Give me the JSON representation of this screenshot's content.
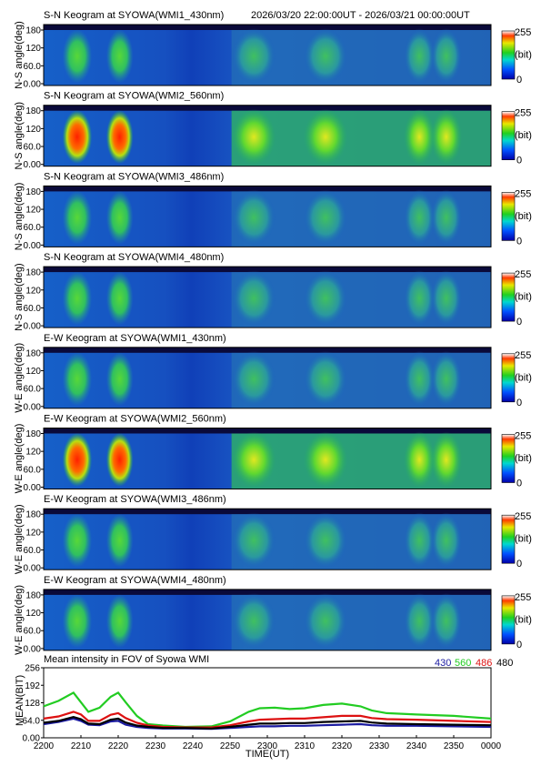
{
  "header": {
    "time_range": "2026/03/20 22:00:00UT - 2026/03/21 00:00:00UT"
  },
  "colorbar": {
    "max_label": "255",
    "unit_label": "(bit)",
    "min_label": "0"
  },
  "keograms": [
    {
      "title": "S-N Keogram at SYOWA(WMI1_430nm)",
      "ylabel": "N-S angle(deg)",
      "ticks": [
        "180",
        "120",
        "60.0",
        "0.00"
      ],
      "intensity": 0.55
    },
    {
      "title": "S-N Keogram at SYOWA(WMI2_560nm)",
      "ylabel": "N-S angle(deg)",
      "ticks": [
        "180",
        "120",
        "60.0",
        "0.00"
      ],
      "intensity": 1.0
    },
    {
      "title": "S-N Keogram at SYOWA(WMI3_486nm)",
      "ylabel": "N-S angle(deg)",
      "ticks": [
        "180",
        "120",
        "60.0",
        "0.00"
      ],
      "intensity": 0.5
    },
    {
      "title": "S-N Keogram at SYOWA(WMI4_480nm)",
      "ylabel": "N-S angle(deg)",
      "ticks": [
        "180",
        "120",
        "60.0",
        "0.00"
      ],
      "intensity": 0.5
    },
    {
      "title": "E-W Keogram at SYOWA(WMI1_430nm)",
      "ylabel": "W-E angle(deg)",
      "ticks": [
        "180",
        "120",
        "60.0",
        "0.00"
      ],
      "intensity": 0.55
    },
    {
      "title": "E-W Keogram at SYOWA(WMI2_560nm)",
      "ylabel": "W-E angle(deg)",
      "ticks": [
        "180",
        "120",
        "60.0",
        "0.00"
      ],
      "intensity": 1.0
    },
    {
      "title": "E-W Keogram at SYOWA(WMI3_486nm)",
      "ylabel": "W-E angle(deg)",
      "ticks": [
        "180",
        "120",
        "60.0",
        "0.00"
      ],
      "intensity": 0.5
    },
    {
      "title": "E-W Keogram at SYOWA(WMI4_480nm)",
      "ylabel": "W-E angle(deg)",
      "ticks": [
        "180",
        "120",
        "60.0",
        "0.00"
      ],
      "intensity": 0.5
    }
  ],
  "chart_data": {
    "type": "line",
    "title": "Mean intensity in FOV of Syowa WMI",
    "xlabel": "TIME(UT)",
    "ylabel": "MEAN(BIT)",
    "xlim": [
      0,
      120
    ],
    "ylim": [
      0,
      256
    ],
    "x_ticks": [
      "2200",
      "2210",
      "2220",
      "2230",
      "2240",
      "2250",
      "2300",
      "2310",
      "2320",
      "2330",
      "2340",
      "2350",
      "0000"
    ],
    "y_ticks": [
      "256",
      "192",
      "128",
      "64.0",
      "0.00"
    ],
    "y_tick_values": [
      256,
      192,
      128,
      64,
      0
    ],
    "x": [
      0,
      4,
      8,
      10,
      12,
      15,
      18,
      20,
      22,
      25,
      28,
      32,
      38,
      45,
      50,
      55,
      58,
      62,
      66,
      70,
      75,
      80,
      85,
      88,
      92,
      100,
      110,
      120
    ],
    "series": [
      {
        "name": "430",
        "color": "#1a1aa0",
        "values": [
          50,
          58,
          70,
          62,
          48,
          46,
          60,
          62,
          48,
          40,
          36,
          34,
          34,
          33,
          36,
          40,
          42,
          42,
          44,
          44,
          46,
          48,
          50,
          46,
          44,
          44,
          42,
          40
        ]
      },
      {
        "name": "560",
        "color": "#22cc22",
        "values": [
          115,
          135,
          165,
          130,
          95,
          110,
          150,
          165,
          130,
          80,
          50,
          45,
          40,
          42,
          60,
          95,
          108,
          110,
          105,
          108,
          120,
          125,
          115,
          100,
          90,
          85,
          80,
          70
        ]
      },
      {
        "name": "486",
        "color": "#dd1111",
        "values": [
          70,
          78,
          95,
          85,
          62,
          62,
          84,
          90,
          72,
          55,
          45,
          40,
          38,
          38,
          46,
          60,
          66,
          68,
          70,
          70,
          75,
          80,
          80,
          72,
          68,
          66,
          62,
          58
        ]
      },
      {
        "name": "480",
        "color": "#000000",
        "values": [
          55,
          62,
          76,
          68,
          52,
          50,
          66,
          70,
          56,
          45,
          40,
          36,
          36,
          34,
          40,
          48,
          52,
          52,
          54,
          54,
          58,
          60,
          62,
          56,
          52,
          50,
          48,
          46
        ]
      }
    ]
  }
}
